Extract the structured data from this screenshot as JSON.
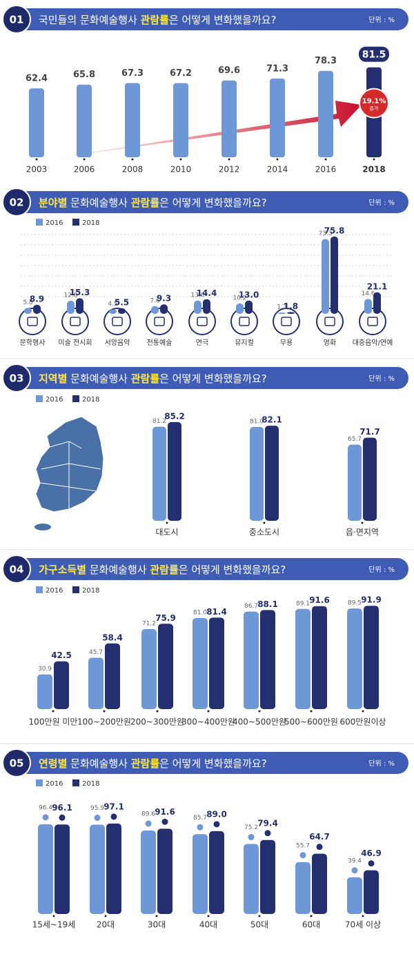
{
  "chart_data": [
    {
      "type": "bar",
      "number": "01",
      "unit": "단위 : %",
      "title": [
        {
          "text": "국민들의 문화예술행사 ",
          "highlight": false
        },
        {
          "text": "관람률",
          "highlight": true
        },
        {
          "text": "은 어떻게 변화했을까요?",
          "highlight": false
        }
      ],
      "categories": [
        "2003",
        "2006",
        "2008",
        "2010",
        "2012",
        "2014",
        "2016",
        "2018"
      ],
      "values": [
        62.4,
        65.8,
        67.3,
        67.2,
        69.6,
        71.3,
        78.3,
        81.5
      ],
      "colors": [
        "#6e97d8",
        "#6e97d8",
        "#6e97d8",
        "#6e97d8",
        "#6e97d8",
        "#6e97d8",
        "#6e97d8",
        "#232f6e"
      ],
      "annotation": {
        "text": "19.1%",
        "sub": "증가"
      }
    },
    {
      "type": "bar",
      "number": "02",
      "unit": "단위 : %",
      "title": [
        {
          "text": "분야별",
          "highlight": true
        },
        {
          "text": " 문화예술행사 ",
          "highlight": false
        },
        {
          "text": "관람률",
          "highlight": true
        },
        {
          "text": "은 어떻게 변화했을까요?",
          "highlight": false
        }
      ],
      "categories": [
        "문학행사",
        "미술 전시회",
        "서양음악",
        "전통예술",
        "연극",
        "뮤지컬",
        "무용",
        "영화",
        "대중음악/연예"
      ],
      "series": [
        {
          "name": "2016",
          "color": "#6e97d8",
          "values": [
            5.8,
            12.8,
            4.5,
            7.6,
            13.0,
            10.2,
            1.3,
            73.3,
            14.6
          ],
          "value_labels": [
            "5.8",
            "12.8",
            "4.5",
            "7.6",
            "13.0",
            "10.2",
            "1.3",
            "73.3",
            "14.6"
          ]
        },
        {
          "name": "2018",
          "color": "#232f6e",
          "values": [
            8.9,
            15.3,
            5.5,
            9.3,
            14.4,
            13.0,
            1.8,
            75.8,
            21.1
          ],
          "value_labels": [
            "8.9",
            "15.3",
            "5.5",
            "9.3",
            "14.4",
            "13.0",
            "1.8",
            "75.8",
            "21.1"
          ]
        }
      ]
    },
    {
      "type": "bar",
      "number": "03",
      "unit": "단위 : %",
      "title": [
        {
          "text": "지역별",
          "highlight": true
        },
        {
          "text": " 문화예술행사 ",
          "highlight": false
        },
        {
          "text": "관람률",
          "highlight": true
        },
        {
          "text": "은 어떻게 변화했을까요?",
          "highlight": false
        }
      ],
      "categories": [
        "대도시",
        "중소도시",
        "읍·면지역"
      ],
      "series": [
        {
          "name": "2016",
          "color": "#6e97d8",
          "values": [
            81.2,
            81.0,
            65.7
          ],
          "value_labels": [
            "81.2",
            "81.0",
            "65.7"
          ]
        },
        {
          "name": "2018",
          "color": "#232f6e",
          "values": [
            85.2,
            82.1,
            71.7
          ],
          "value_labels": [
            "85.2",
            "82.1",
            "71.7"
          ]
        }
      ]
    },
    {
      "type": "bar",
      "number": "04",
      "unit": "단위 : %",
      "title": [
        {
          "text": "가구소득별",
          "highlight": true
        },
        {
          "text": " 문화예술행사 ",
          "highlight": false
        },
        {
          "text": "관람률",
          "highlight": true
        },
        {
          "text": "은 어떻게 변화했을까요?",
          "highlight": false
        }
      ],
      "categories": [
        "100만원 미만",
        "100~200만원",
        "200~300만원",
        "300~400만원",
        "400~500만원",
        "500~600만원",
        "600만원이상"
      ],
      "series": [
        {
          "name": "2016",
          "color": "#6e97d8",
          "values": [
            30.9,
            45.7,
            71.2,
            81.0,
            86.7,
            89.1,
            89.5
          ],
          "value_labels": [
            "30.9",
            "45.7",
            "71.2",
            "81.0",
            "86.7",
            "89.1",
            "89.5"
          ]
        },
        {
          "name": "2018",
          "color": "#232f6e",
          "values": [
            42.5,
            58.4,
            75.9,
            81.4,
            88.1,
            91.6,
            91.9
          ],
          "value_labels": [
            "42.5",
            "58.4",
            "75.9",
            "81.4",
            "88.1",
            "91.6",
            "91.9"
          ]
        }
      ]
    },
    {
      "type": "bar",
      "number": "05",
      "unit": "단위 : %",
      "title": [
        {
          "text": "연령별",
          "highlight": true
        },
        {
          "text": " 문화예술행사 ",
          "highlight": false
        },
        {
          "text": "관람률",
          "highlight": true
        },
        {
          "text": "은 어떻게 변화했을까요?",
          "highlight": false
        }
      ],
      "categories": [
        "15세~19세",
        "20대",
        "30대",
        "40대",
        "50대",
        "60대",
        "70세 이상"
      ],
      "series": [
        {
          "name": "2016",
          "color": "#6e97d8",
          "values": [
            96.4,
            95.9,
            89.6,
            85.7,
            75.2,
            55.7,
            39.4
          ],
          "value_labels": [
            "96.4",
            "95.9",
            "89.6",
            "85.7",
            "75.2",
            "55.7",
            "39.4"
          ]
        },
        {
          "name": "2018",
          "color": "#232f6e",
          "values": [
            96.1,
            97.1,
            91.6,
            89.0,
            79.4,
            64.7,
            46.9
          ],
          "value_labels": [
            "96.1",
            "97.1",
            "91.6",
            "89.0",
            "79.4",
            "64.7",
            "46.9"
          ]
        }
      ]
    }
  ]
}
